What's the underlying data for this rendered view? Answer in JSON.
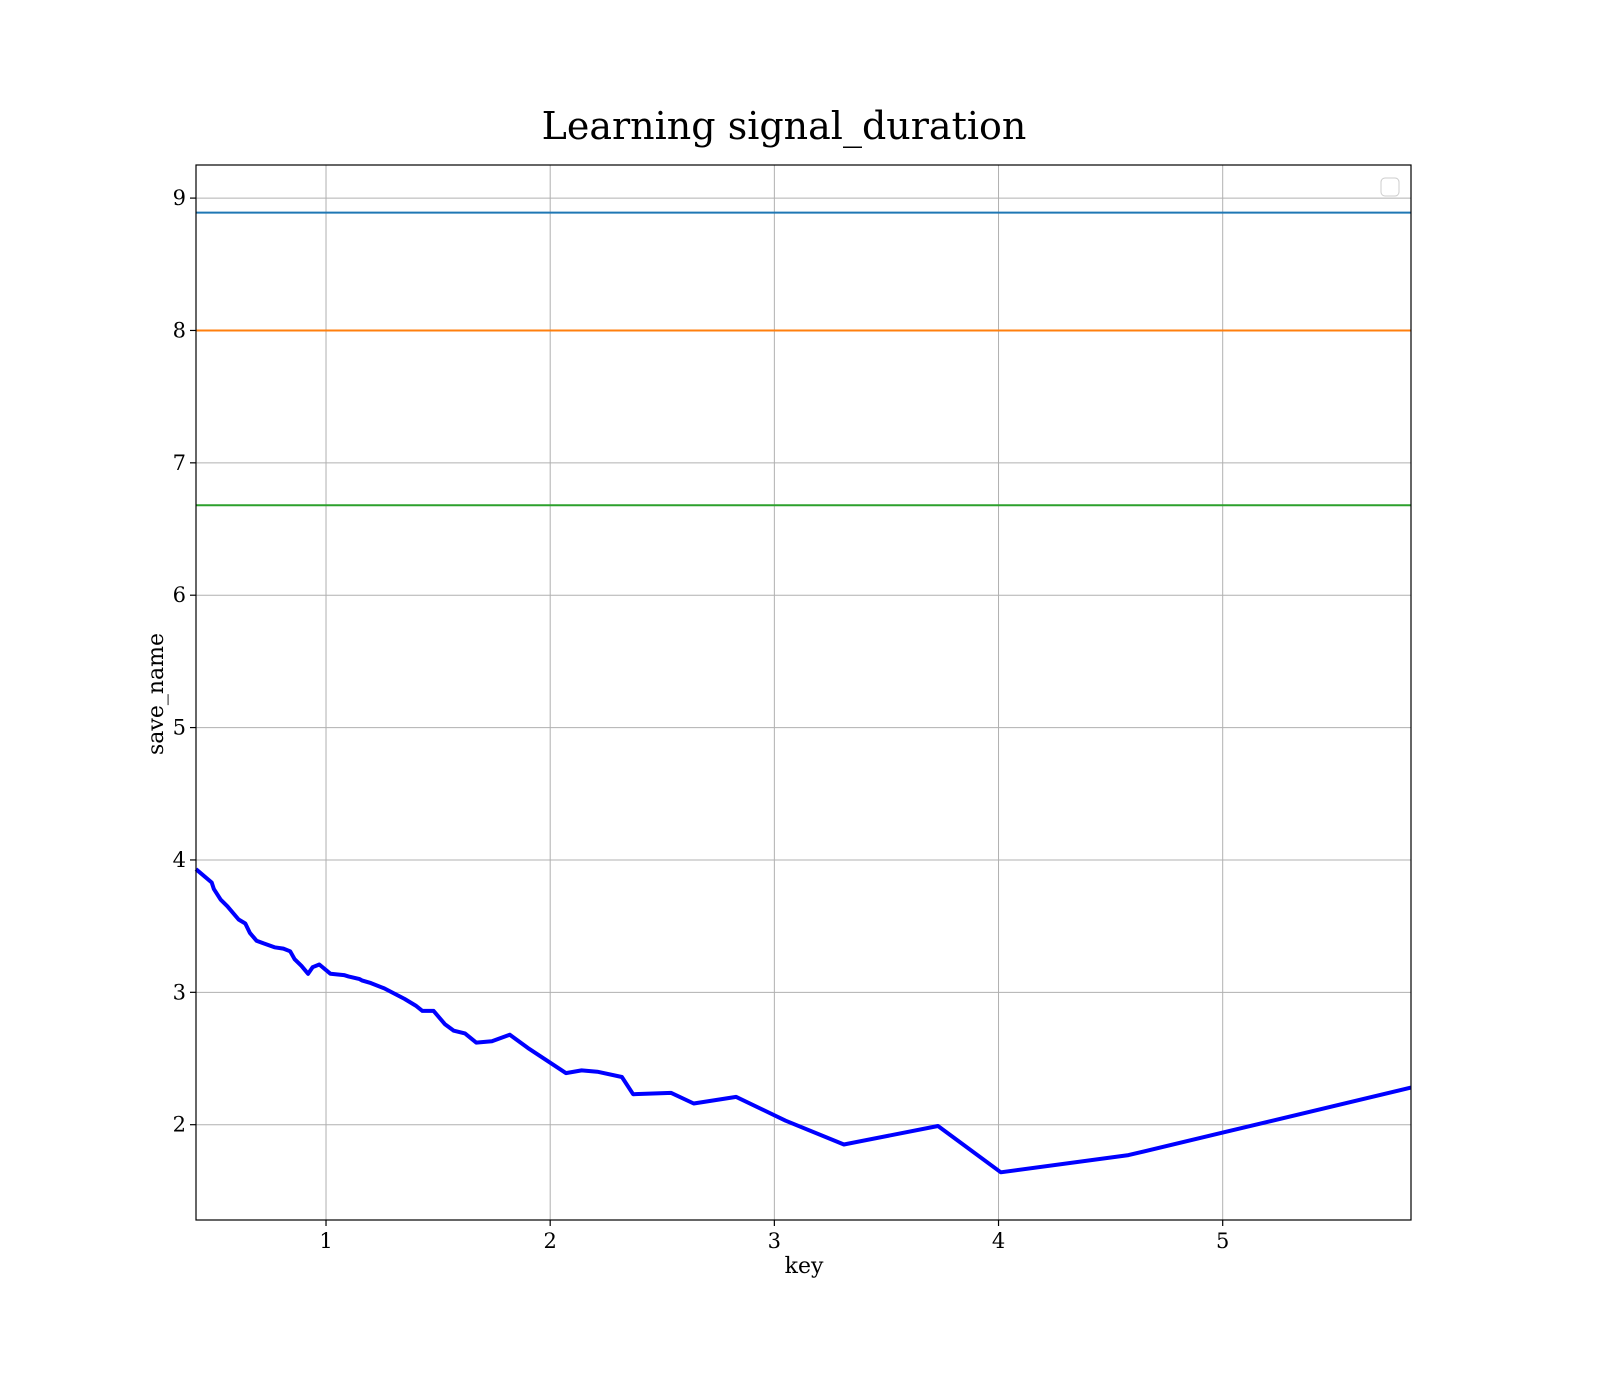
{
  "chart_data": {
    "type": "line",
    "title": "Learning signal_duration",
    "xlabel": "key",
    "ylabel": "save_name",
    "xlim": [
      0.42,
      5.84
    ],
    "ylim": [
      1.28,
      9.25
    ],
    "xticks": [
      1,
      2,
      3,
      4,
      5
    ],
    "yticks": [
      2,
      3,
      4,
      5,
      6,
      7,
      8,
      9
    ],
    "grid": true,
    "legend": {
      "placement": "top-right",
      "entries": []
    },
    "hlines": [
      {
        "y": 8.89,
        "color": "#1f77b4"
      },
      {
        "y": 8.0,
        "color": "#ff7f0e"
      },
      {
        "y": 6.68,
        "color": "#2ca02c"
      }
    ],
    "series": [
      {
        "color": "#0000ff",
        "x": [
          0.42,
          0.49,
          0.5,
          0.53,
          0.56,
          0.61,
          0.64,
          0.66,
          0.69,
          0.72,
          0.77,
          0.81,
          0.84,
          0.86,
          0.89,
          0.92,
          0.94,
          0.97,
          1.02,
          1.08,
          1.1,
          1.15,
          1.16,
          1.2,
          1.26,
          1.35,
          1.4,
          1.43,
          1.48,
          1.53,
          1.57,
          1.62,
          1.67,
          1.74,
          1.82,
          1.9,
          2.07,
          2.14,
          2.21,
          2.32,
          2.37,
          2.54,
          2.64,
          2.83,
          3.05,
          3.31,
          3.73,
          4.01,
          4.58,
          5.0,
          5.84
        ],
        "y": [
          3.93,
          3.83,
          3.78,
          3.7,
          3.65,
          3.55,
          3.52,
          3.45,
          3.39,
          3.37,
          3.34,
          3.33,
          3.31,
          3.25,
          3.2,
          3.14,
          3.19,
          3.21,
          3.14,
          3.13,
          3.12,
          3.1,
          3.09,
          3.07,
          3.03,
          2.95,
          2.9,
          2.86,
          2.86,
          2.76,
          2.71,
          2.69,
          2.62,
          2.63,
          2.68,
          2.58,
          2.39,
          2.41,
          2.4,
          2.36,
          2.23,
          2.24,
          2.16,
          2.21,
          2.03,
          1.85,
          1.99,
          1.64,
          1.77,
          1.94,
          2.28
        ]
      }
    ]
  }
}
